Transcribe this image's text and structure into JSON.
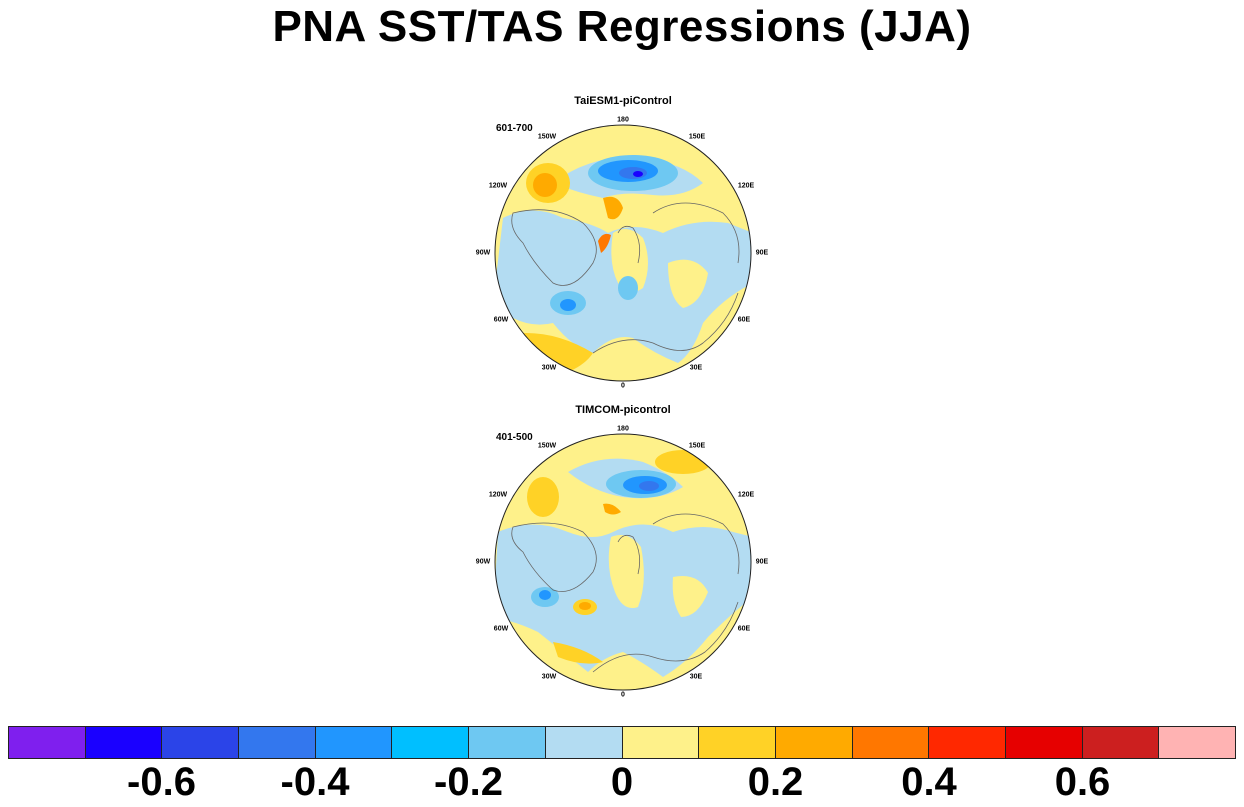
{
  "title": "PNA SST/TAS Regressions (JJA)",
  "panels": [
    {
      "title": "TaiESM1-piControl",
      "period": "601-700"
    },
    {
      "title": "TIMCOM-picontrol",
      "period": "401-500"
    }
  ],
  "longitude_labels": {
    "top": "180",
    "upper_right": "150E",
    "right_upper": "120E",
    "right": "90E",
    "right_lower": "60E",
    "lower_right": "30E",
    "bottom": "0",
    "lower_left": "30W",
    "left_lower": "60W",
    "left": "90W",
    "left_upper": "120W",
    "upper_left": "150W"
  },
  "colorbar": {
    "colors": [
      "#7f1fee",
      "#1a00ff",
      "#2b44e8",
      "#3377ee",
      "#2196fe",
      "#00bfff",
      "#6ec8f2",
      "#b3dcf2",
      "#fef18a",
      "#ffd226",
      "#ffaa00",
      "#ff7700",
      "#ff2800",
      "#e60000",
      "#cc1f1f",
      "#ffb3b3"
    ],
    "labels": [
      "-0.6",
      "-0.4",
      "-0.2",
      "0",
      "0.2",
      "0.4",
      "0.6"
    ],
    "label_values": [
      -0.6,
      -0.4,
      -0.2,
      0,
      0.2,
      0.4,
      0.6
    ]
  }
}
